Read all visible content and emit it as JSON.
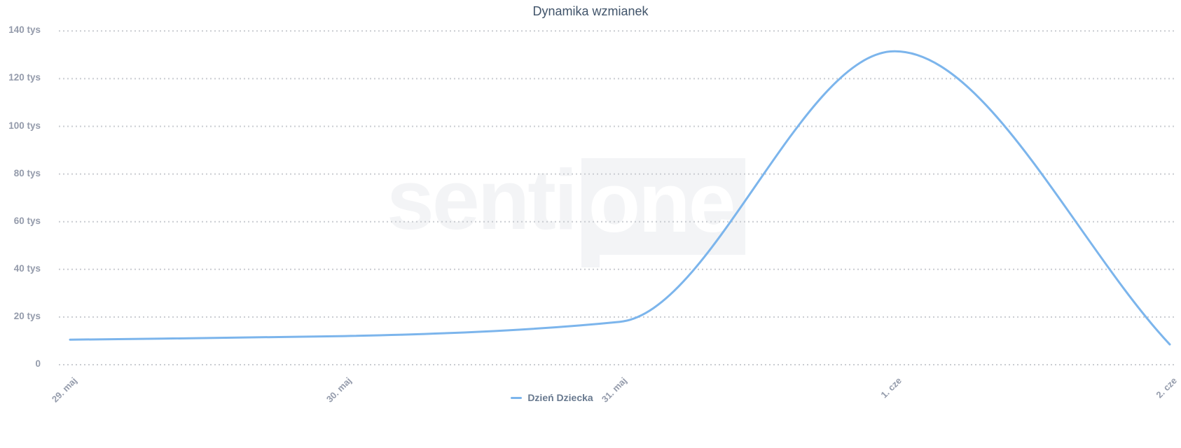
{
  "watermark": {
    "senti": "senti",
    "one": "one"
  },
  "colors": {
    "series": "#7cb5ec",
    "title": "#41546a",
    "axis_label": "#949bab",
    "legend_label": "#68798f",
    "grid": "#c9ccd1",
    "watermark": "#f3f4f6"
  },
  "legend": {
    "items": [
      {
        "label": "Dzień Dziecka"
      }
    ]
  },
  "chart_data": {
    "type": "line",
    "title": "Dynamika wzmianek",
    "categories": [
      "29. maj",
      "30. maj",
      "31. maj",
      "1. cze",
      "2. cze"
    ],
    "series": [
      {
        "name": "Dzień Dziecka",
        "color": "#7cb5ec",
        "smooth": true,
        "values": [
          10500,
          12000,
          18000,
          131500,
          8500
        ]
      }
    ],
    "xlabel": "",
    "ylabel": "",
    "ylim": [
      0,
      140000
    ],
    "yticks": [
      {
        "value": 0,
        "label": "0"
      },
      {
        "value": 20000,
        "label": "20 tys"
      },
      {
        "value": 40000,
        "label": "40 tys"
      },
      {
        "value": 60000,
        "label": "60 tys"
      },
      {
        "value": 80000,
        "label": "80 tys"
      },
      {
        "value": 100000,
        "label": "100 tys"
      },
      {
        "value": 120000,
        "label": "120 tys"
      },
      {
        "value": 140000,
        "label": "140 tys"
      }
    ],
    "grid": "horizontal-dotted",
    "legend_position": "bottom-center"
  }
}
